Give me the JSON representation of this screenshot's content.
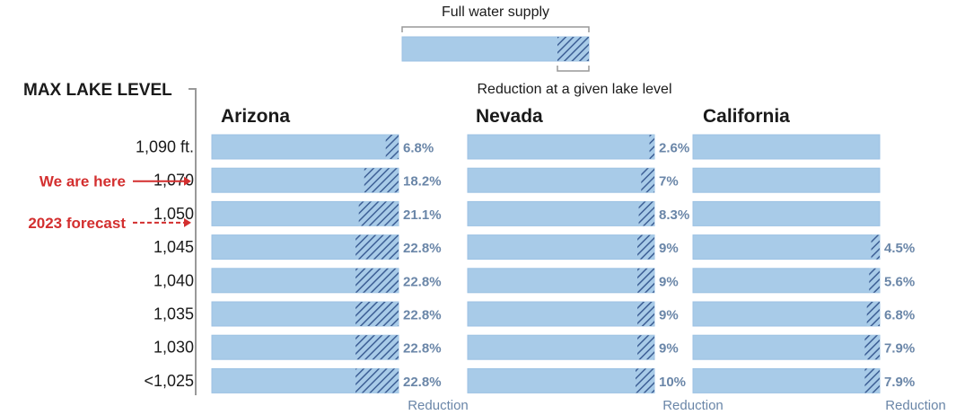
{
  "chart_data": {
    "type": "bar",
    "legend": {
      "top_label": "Full water supply",
      "bottom_label": "Reduction at a given lake level"
    },
    "y_axis_title": "MAX LAKE LEVEL",
    "levels": [
      "1,090 ft.",
      "1,070",
      "1,050",
      "1,045",
      "1,040",
      "1,035",
      "1,030",
      "<1,025"
    ],
    "states": [
      {
        "name": "Arizona",
        "reductions": [
          6.8,
          18.2,
          21.1,
          22.8,
          22.8,
          22.8,
          22.8,
          22.8
        ],
        "labels": [
          "6.8%",
          "18.2%",
          "21.1%",
          "22.8%",
          "22.8%",
          "22.8%",
          "22.8%",
          "22.8%"
        ],
        "footer": "Reduction"
      },
      {
        "name": "Nevada",
        "reductions": [
          2.6,
          7,
          8.3,
          9,
          9,
          9,
          9,
          10
        ],
        "labels": [
          "2.6%",
          "7%",
          "8.3%",
          "9%",
          "9%",
          "9%",
          "9%",
          "10%"
        ],
        "footer": "Reduction"
      },
      {
        "name": "California",
        "reductions": [
          0,
          0,
          0,
          4.5,
          5.6,
          6.8,
          7.9,
          7.9
        ],
        "labels": [
          "",
          "",
          "",
          "4.5%",
          "5.6%",
          "6.8%",
          "7.9%",
          "7.9%"
        ],
        "footer": "Reduction"
      }
    ],
    "annotations": [
      {
        "text": "We are here",
        "level": "1,070",
        "style": "solid"
      },
      {
        "text": "2023 forecast",
        "level": "1,050",
        "style": "dashed"
      }
    ],
    "colors": {
      "bar_fill": "#a8cbe8",
      "bar_border": "#9cc2e3",
      "hatch": "#3d5f95",
      "label": "#6a86a8",
      "annotation": "#d32f2f",
      "axis": "#999999",
      "text": "#1a1a1a",
      "footer": "#6a86a8"
    }
  }
}
